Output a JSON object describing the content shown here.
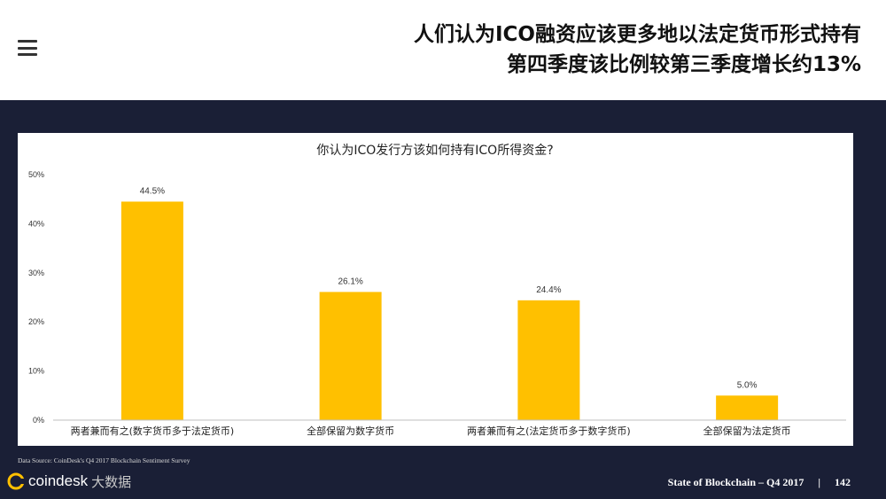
{
  "header": {
    "title_line1": "人们认为ICO融资应该更多地以法定货币形式持有",
    "title_line2": "第四季度该比例较第三季度增长约13%"
  },
  "footer": {
    "source": "Data Source: CoinDesk's Q4 2017 Blockchain Sentiment Survey",
    "brand": "coindesk",
    "brand_extra": "大数据",
    "report": "State of Blockchain – Q4 2017",
    "separator": "|",
    "page": "142"
  },
  "colors": {
    "bar": "#FFC000",
    "dark_bg": "#1a1f36"
  },
  "chart_data": {
    "type": "bar",
    "title": "你认为ICO发行方该如何持有ICO所得资金?",
    "categories": [
      "两者兼而有之(数字货币多于法定货币)",
      "全部保留为数字货币",
      "两者兼而有之(法定货币多于数字货币)",
      "全部保留为法定货币"
    ],
    "values": [
      44.5,
      26.1,
      24.4,
      5.0
    ],
    "value_labels": [
      "44.5%",
      "26.1%",
      "24.4%",
      "5.0%"
    ],
    "yticks": [
      0,
      10,
      20,
      30,
      40,
      50
    ],
    "ytick_labels": [
      "0%",
      "10%",
      "20%",
      "30%",
      "40%",
      "50%"
    ],
    "ylim": [
      0,
      50
    ],
    "xlabel": "",
    "ylabel": "",
    "grid": false,
    "legend": "none"
  }
}
